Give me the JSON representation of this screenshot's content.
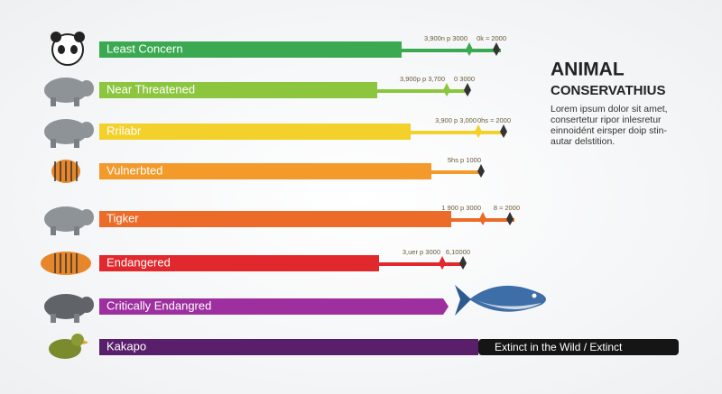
{
  "title": "ANIMAL",
  "subtitle": "CONSERVATHIUS",
  "body": [
    "Lorem ipsum dolor sit amet,",
    "consertetur ripor inlesretur",
    "einnoidént eirsper doip stin-",
    "autar delstition."
  ],
  "rows": [
    {
      "label": "Least Concern",
      "color": "#3aa951",
      "notes": [
        "3,900n p 3000",
        "0k ≈ 2000"
      ]
    },
    {
      "label": "Near Threatened",
      "color": "#8cc63f",
      "notes": [
        "3,900p p 3,700",
        "0 3000"
      ]
    },
    {
      "label": "Rrilabr",
      "color": "#f3d02a",
      "notes": [
        "3,900 p 3,000",
        "0hs ≈ 2000"
      ]
    },
    {
      "label": "Vulnerbted",
      "color": "#f39a2b",
      "notes": [
        "5hs p 1000"
      ]
    },
    {
      "label": "Tigker",
      "color": "#ec6b28",
      "notes": [
        "1 900 p 3000",
        "8 ≈ 2000"
      ]
    },
    {
      "label": "Endangered",
      "color": "#e0282d",
      "notes": [
        "3,uer p 3000",
        "6,10000"
      ]
    },
    {
      "label": "Critically Endangred",
      "color": "#9d2f9f",
      "notes": []
    },
    {
      "label": "Kakapo",
      "color": "#5a1f6b",
      "notes": []
    }
  ],
  "extinct_label": "Extinct in the Wild / Extinct"
}
